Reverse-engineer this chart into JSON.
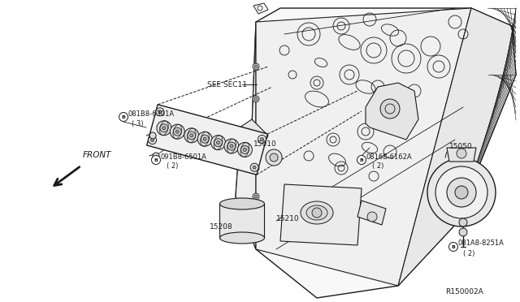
{
  "background_color": "#ffffff",
  "ref_number": "R150002A",
  "line_color": "#1a1a1a",
  "labels": {
    "see_sec": "SEE SEC11",
    "front": "FRONT",
    "part_15010": "15010",
    "part_15050": "15050",
    "part_15208": "15208",
    "part_15210": "15210",
    "bolt1_code": "081B8-6301A",
    "bolt1_qty": "( 3)",
    "bolt2_code": "091B8-6501A",
    "bolt2_qty": "( 2)",
    "bolt3_code": "08168-6162A",
    "bolt3_qty": "( 2)",
    "bolt4_code": "081A8-8251A",
    "bolt4_qty": "( 2)"
  },
  "figsize": [
    6.4,
    3.72
  ],
  "dpi": 100
}
